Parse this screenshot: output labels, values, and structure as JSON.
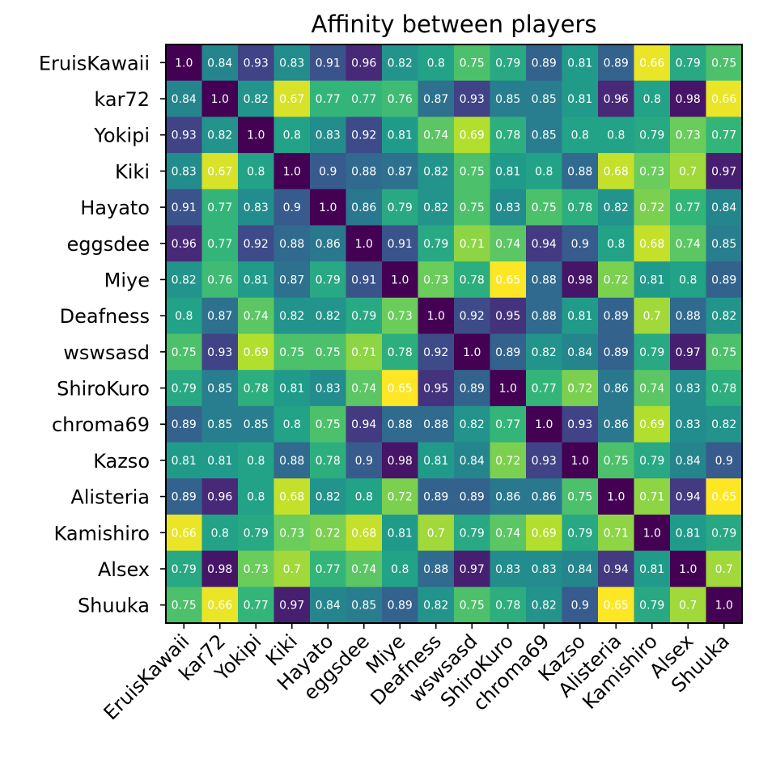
{
  "chart_data": {
    "type": "heatmap",
    "title": "Affinity between players",
    "xlabel": "",
    "ylabel": "",
    "colormap": "viridis",
    "colormap_reversed": true,
    "value_range": [
      0.65,
      1.0
    ],
    "grid": false,
    "legend": "none",
    "x_tick_rotation": 45,
    "labels": [
      "EruisKawaii",
      "kar72",
      "Yokipi",
      "Kiki",
      "Hayato",
      "eggsdee",
      "Miye",
      "Deafness",
      "wswsasd",
      "ShiroKuro",
      "chroma69",
      "Kazso",
      "Alisteria",
      "Kamishiro",
      "Alsex",
      "Shuuka"
    ],
    "cell_labels": [
      [
        "1.0",
        "0.84",
        "0.93",
        "0.83",
        "0.91",
        "0.96",
        "0.82",
        "0.8",
        "0.75",
        "0.79",
        "0.89",
        "0.81",
        "0.89",
        "0.66",
        "0.79",
        "0.75"
      ],
      [
        "0.84",
        "1.0",
        "0.82",
        "0.67",
        "0.77",
        "0.77",
        "0.76",
        "0.87",
        "0.93",
        "0.85",
        "0.85",
        "0.81",
        "0.96",
        "0.8",
        "0.98",
        "0.66"
      ],
      [
        "0.93",
        "0.82",
        "1.0",
        "0.8",
        "0.83",
        "0.92",
        "0.81",
        "0.74",
        "0.69",
        "0.78",
        "0.85",
        "0.8",
        "0.8",
        "0.79",
        "0.73",
        "0.77"
      ],
      [
        "0.83",
        "0.67",
        "0.8",
        "1.0",
        "0.9",
        "0.88",
        "0.87",
        "0.82",
        "0.75",
        "0.81",
        "0.8",
        "0.88",
        "0.68",
        "0.73",
        "0.7",
        "0.97"
      ],
      [
        "0.91",
        "0.77",
        "0.83",
        "0.9",
        "1.0",
        "0.86",
        "0.79",
        "0.82",
        "0.75",
        "0.83",
        "0.75",
        "0.78",
        "0.82",
        "0.72",
        "0.77",
        "0.84"
      ],
      [
        "0.96",
        "0.77",
        "0.92",
        "0.88",
        "0.86",
        "1.0",
        "0.91",
        "0.79",
        "0.71",
        "0.74",
        "0.94",
        "0.9",
        "0.8",
        "0.68",
        "0.74",
        "0.85"
      ],
      [
        "0.82",
        "0.76",
        "0.81",
        "0.87",
        "0.79",
        "0.91",
        "1.0",
        "0.73",
        "0.78",
        "0.65",
        "0.88",
        "0.98",
        "0.72",
        "0.81",
        "0.8",
        "0.89"
      ],
      [
        "0.8",
        "0.87",
        "0.74",
        "0.82",
        "0.82",
        "0.79",
        "0.73",
        "1.0",
        "0.92",
        "0.95",
        "0.88",
        "0.81",
        "0.89",
        "0.7",
        "0.88",
        "0.82"
      ],
      [
        "0.75",
        "0.93",
        "0.69",
        "0.75",
        "0.75",
        "0.71",
        "0.78",
        "0.92",
        "1.0",
        "0.89",
        "0.82",
        "0.84",
        "0.89",
        "0.79",
        "0.97",
        "0.75"
      ],
      [
        "0.79",
        "0.85",
        "0.78",
        "0.81",
        "0.83",
        "0.74",
        "0.65",
        "0.95",
        "0.89",
        "1.0",
        "0.77",
        "0.72",
        "0.86",
        "0.74",
        "0.83",
        "0.78"
      ],
      [
        "0.89",
        "0.85",
        "0.85",
        "0.8",
        "0.75",
        "0.94",
        "0.88",
        "0.88",
        "0.82",
        "0.77",
        "1.0",
        "0.93",
        "0.86",
        "0.69",
        "0.83",
        "0.82"
      ],
      [
        "0.81",
        "0.81",
        "0.8",
        "0.88",
        "0.78",
        "0.9",
        "0.98",
        "0.81",
        "0.84",
        "0.72",
        "0.93",
        "1.0",
        "0.75",
        "0.79",
        "0.84",
        "0.9"
      ],
      [
        "0.89",
        "0.96",
        "0.8",
        "0.68",
        "0.82",
        "0.8",
        "0.72",
        "0.89",
        "0.89",
        "0.86",
        "0.86",
        "0.75",
        "1.0",
        "0.71",
        "0.94",
        "0.65"
      ],
      [
        "0.66",
        "0.8",
        "0.79",
        "0.73",
        "0.72",
        "0.68",
        "0.81",
        "0.7",
        "0.79",
        "0.74",
        "0.69",
        "0.79",
        "0.71",
        "1.0",
        "0.81",
        "0.79"
      ],
      [
        "0.79",
        "0.98",
        "0.73",
        "0.7",
        "0.77",
        "0.74",
        "0.8",
        "0.88",
        "0.97",
        "0.83",
        "0.83",
        "0.84",
        "0.94",
        "0.81",
        "1.0",
        "0.7"
      ],
      [
        "0.75",
        "0.66",
        "0.77",
        "0.97",
        "0.84",
        "0.85",
        "0.89",
        "0.82",
        "0.75",
        "0.78",
        "0.82",
        "0.9",
        "0.65",
        "0.79",
        "0.7",
        "1.0"
      ]
    ]
  }
}
